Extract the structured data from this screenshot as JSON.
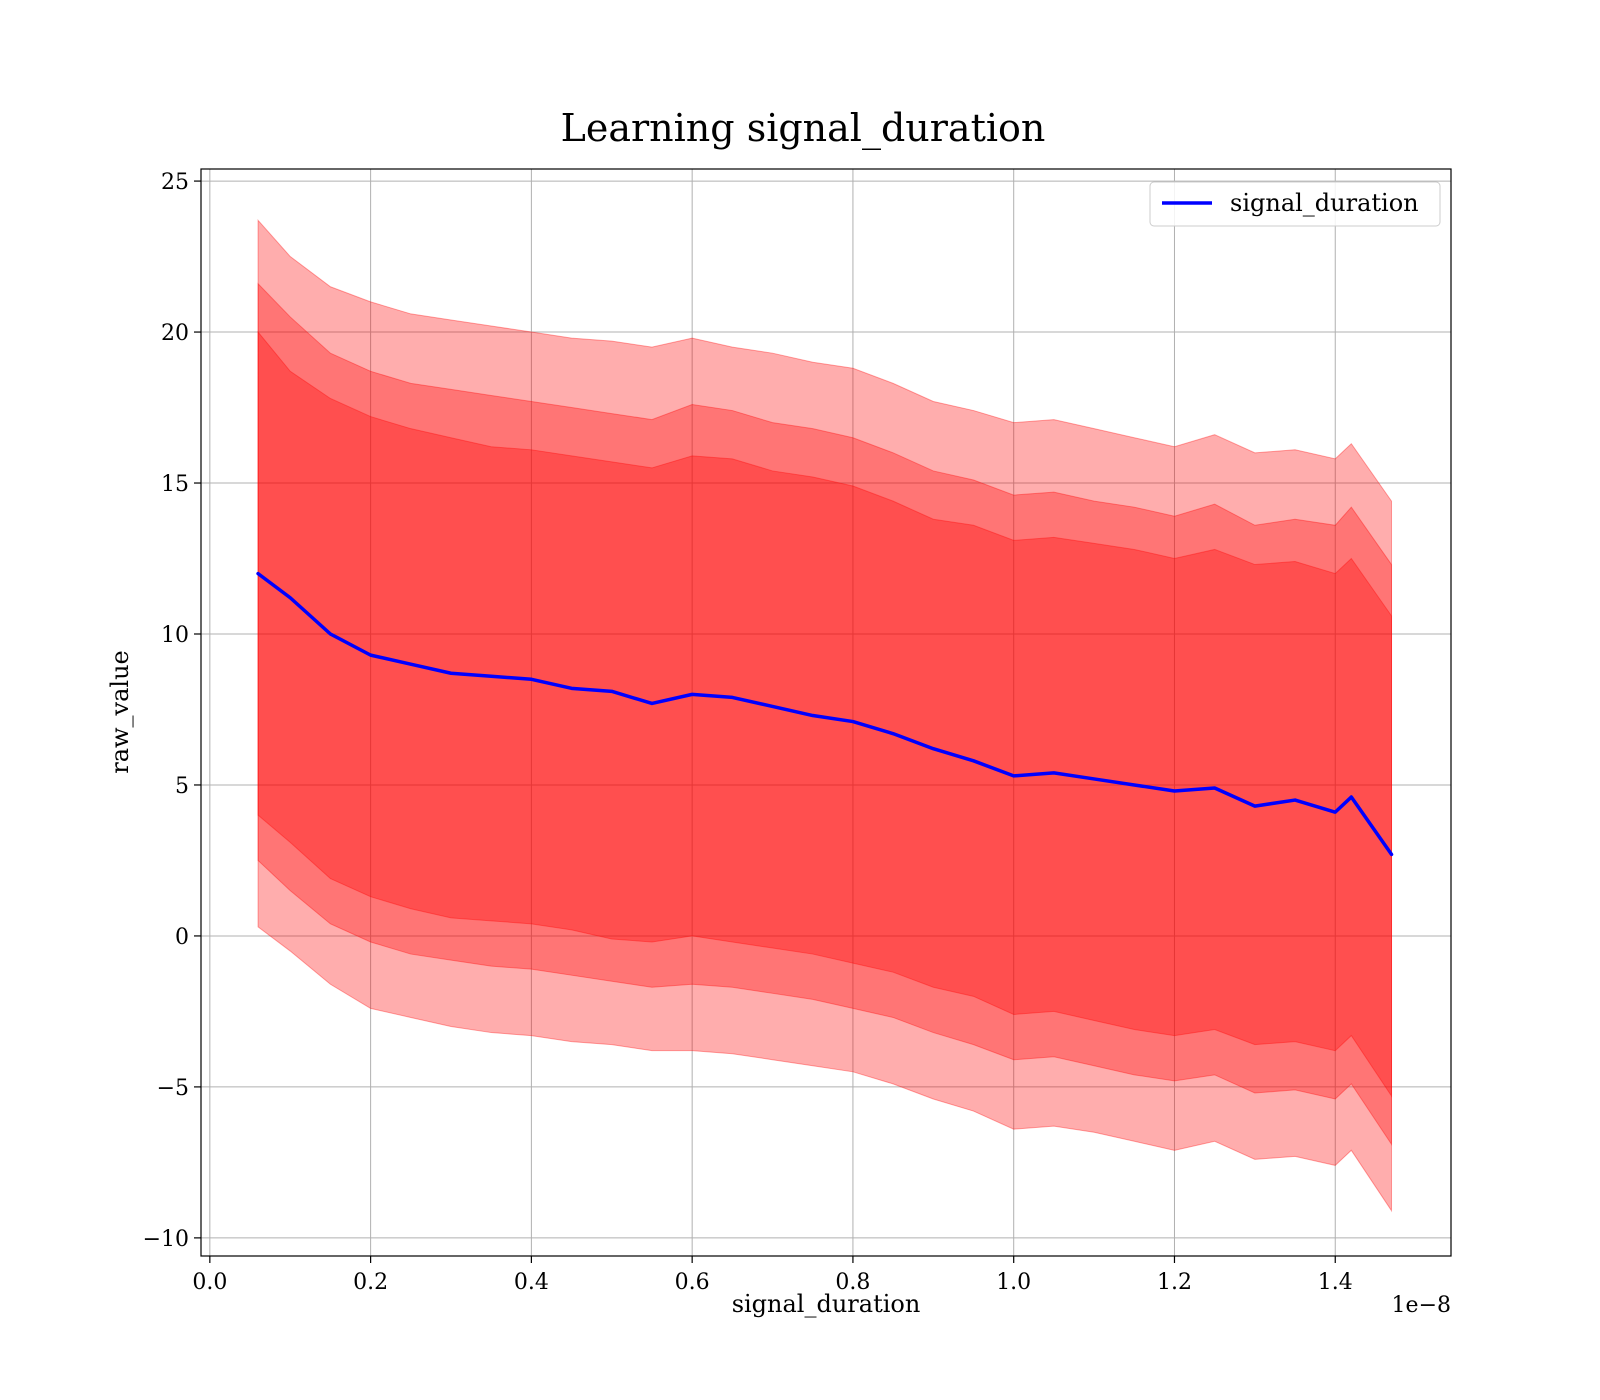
{
  "chart_data": {
    "type": "line",
    "title": "Learning signal_duration",
    "xlabel": "signal_duration",
    "ylabel": "raw_value",
    "x_offset_label": "1e−8",
    "x_tick_labels": [
      "0.0",
      "0.2",
      "0.4",
      "0.6",
      "0.8",
      "1.0",
      "1.2",
      "1.4"
    ],
    "y_tick_labels": [
      "−10",
      "−5",
      "0",
      "5",
      "10",
      "15",
      "20",
      "25"
    ],
    "xlim": [
      -0.011,
      1.544
    ],
    "ylim": [
      -10.6,
      25.4
    ],
    "x_scale_multiplier": 1e-08,
    "grid": true,
    "legend_position": "top-right",
    "colors": {
      "line": "#0000ff",
      "band_outer": "#ff0000",
      "band_middle": "#bf8040",
      "band_inner": "#7f3f7f",
      "grid": "#b0b0b0"
    },
    "x": [
      0.06,
      0.1,
      0.15,
      0.2,
      0.25,
      0.3,
      0.35,
      0.4,
      0.45,
      0.5,
      0.55,
      0.6,
      0.65,
      0.7,
      0.75,
      0.8,
      0.85,
      0.9,
      0.95,
      1.0,
      1.05,
      1.1,
      1.15,
      1.2,
      1.25,
      1.3,
      1.35,
      1.4,
      1.42,
      1.47
    ],
    "series": [
      {
        "name": "signal_duration",
        "values": [
          12.0,
          11.2,
          10.0,
          9.3,
          9.0,
          8.7,
          8.6,
          8.5,
          8.2,
          8.1,
          7.7,
          8.0,
          7.9,
          7.6,
          7.3,
          7.1,
          6.7,
          6.2,
          5.8,
          5.3,
          5.4,
          5.2,
          5.0,
          4.8,
          4.9,
          4.3,
          4.5,
          4.1,
          4.6,
          2.7
        ]
      }
    ],
    "bands": [
      {
        "role": "outer",
        "upper": [
          23.7,
          22.5,
          21.5,
          21.0,
          20.6,
          20.4,
          20.2,
          20.0,
          19.8,
          19.7,
          19.5,
          19.8,
          19.5,
          19.3,
          19.0,
          18.8,
          18.3,
          17.7,
          17.4,
          17.0,
          17.1,
          16.8,
          16.5,
          16.2,
          16.6,
          16.0,
          16.1,
          15.8,
          16.3,
          14.4
        ],
        "lower": [
          0.3,
          -0.5,
          -1.6,
          -2.4,
          -2.7,
          -3.0,
          -3.2,
          -3.3,
          -3.5,
          -3.6,
          -3.8,
          -3.8,
          -3.9,
          -4.1,
          -4.3,
          -4.5,
          -4.9,
          -5.4,
          -5.8,
          -6.4,
          -6.3,
          -6.5,
          -6.8,
          -7.1,
          -6.8,
          -7.4,
          -7.3,
          -7.6,
          -7.1,
          -9.1
        ]
      },
      {
        "role": "middle",
        "upper": [
          21.6,
          20.5,
          19.3,
          18.7,
          18.3,
          18.1,
          17.9,
          17.7,
          17.5,
          17.3,
          17.1,
          17.6,
          17.4,
          17.0,
          16.8,
          16.5,
          16.0,
          15.4,
          15.1,
          14.6,
          14.7,
          14.4,
          14.2,
          13.9,
          14.3,
          13.6,
          13.8,
          13.6,
          14.2,
          12.3
        ],
        "lower": [
          2.5,
          1.5,
          0.4,
          -0.2,
          -0.6,
          -0.8,
          -1.0,
          -1.1,
          -1.3,
          -1.5,
          -1.7,
          -1.6,
          -1.7,
          -1.9,
          -2.1,
          -2.4,
          -2.7,
          -3.2,
          -3.6,
          -4.1,
          -4.0,
          -4.3,
          -4.6,
          -4.8,
          -4.6,
          -5.2,
          -5.1,
          -5.4,
          -4.9,
          -6.9
        ]
      },
      {
        "role": "inner",
        "upper": [
          20.0,
          18.7,
          17.8,
          17.2,
          16.8,
          16.5,
          16.2,
          16.1,
          15.9,
          15.7,
          15.5,
          15.9,
          15.8,
          15.4,
          15.2,
          14.9,
          14.4,
          13.8,
          13.6,
          13.1,
          13.2,
          13.0,
          12.8,
          12.5,
          12.8,
          12.3,
          12.4,
          12.0,
          12.5,
          10.6
        ],
        "lower": [
          4.0,
          3.1,
          1.9,
          1.3,
          0.9,
          0.6,
          0.5,
          0.4,
          0.2,
          -0.1,
          -0.2,
          0.0,
          -0.2,
          -0.4,
          -0.6,
          -0.9,
          -1.2,
          -1.7,
          -2.0,
          -2.6,
          -2.5,
          -2.8,
          -3.1,
          -3.3,
          -3.1,
          -3.6,
          -3.5,
          -3.8,
          -3.3,
          -5.3
        ]
      }
    ]
  }
}
